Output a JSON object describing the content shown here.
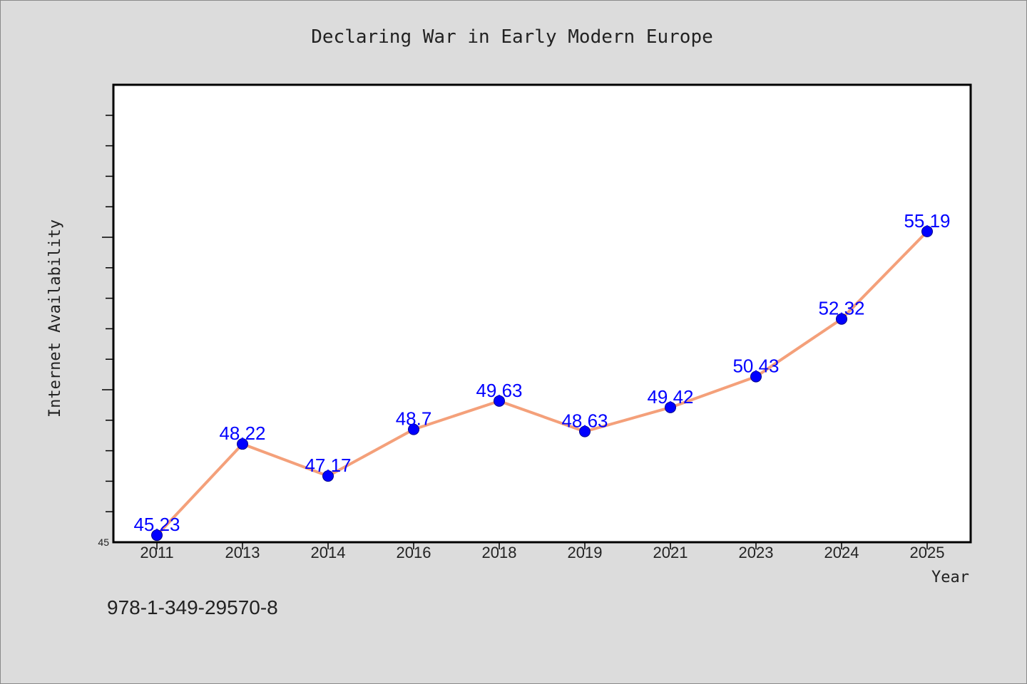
{
  "chart_data": {
    "type": "line",
    "title": "Declaring War in Early Modern Europe",
    "xlabel": "Year",
    "ylabel": "Internet Availability",
    "categories": [
      "2011",
      "2013",
      "2014",
      "2016",
      "2018",
      "2019",
      "2021",
      "2023",
      "2024",
      "2025"
    ],
    "series": [
      {
        "values": [
          45.23,
          48.22,
          47.17,
          48.7,
          49.63,
          48.63,
          49.42,
          50.43,
          52.32,
          55.19
        ],
        "data_labels": [
          "45.23",
          "48.22",
          "47.17",
          "48.7",
          "49.63",
          "48.63",
          "49.42",
          "50.43",
          "52.32",
          "55.19"
        ],
        "line_color": "#f4a07a",
        "marker_color": "#0000ff"
      }
    ],
    "y_min_label": "45",
    "ylim": [
      45,
      60
    ],
    "y_major_step": 5,
    "y_minor_step": 1,
    "grid": false,
    "legend": "none"
  },
  "footer": {
    "isbn": "978-1-349-29570-8"
  },
  "colors": {
    "background": "#dcdcdc",
    "plot_background": "#ffffff",
    "data_label": "#0000ff"
  }
}
